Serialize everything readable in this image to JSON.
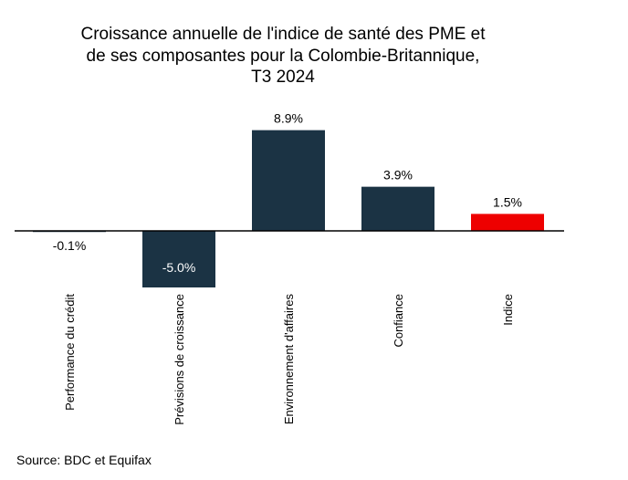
{
  "chart_data": {
    "type": "bar",
    "title": "Croissance annuelle de l'indice de santé des PME et de ses composantes pour la Colombie-Britannique, T3 2024",
    "title_lines": [
      "Croissance annuelle de l'indice de santé des PME et",
      "de ses composantes pour la Colombie-Britannique,",
      "T3 2024"
    ],
    "categories": [
      "Performance du crédit",
      "Prévisions de croissance",
      "Environnement d'affaires",
      "Confiance",
      "Indice"
    ],
    "values": [
      -0.1,
      -5.0,
      8.9,
      3.9,
      1.5
    ],
    "data_labels": [
      "-0.1%",
      "-5.0%",
      "8.9%",
      "3.9%",
      "1.5%"
    ],
    "colors": [
      "#1b3344",
      "#1b3344",
      "#1b3344",
      "#1b3344",
      "#ee0000"
    ],
    "xlabel": "",
    "ylabel": "",
    "ylim": [
      -5.0,
      8.9
    ],
    "grid": false,
    "legend": "none"
  },
  "source": "Source: BDC et Equifax"
}
